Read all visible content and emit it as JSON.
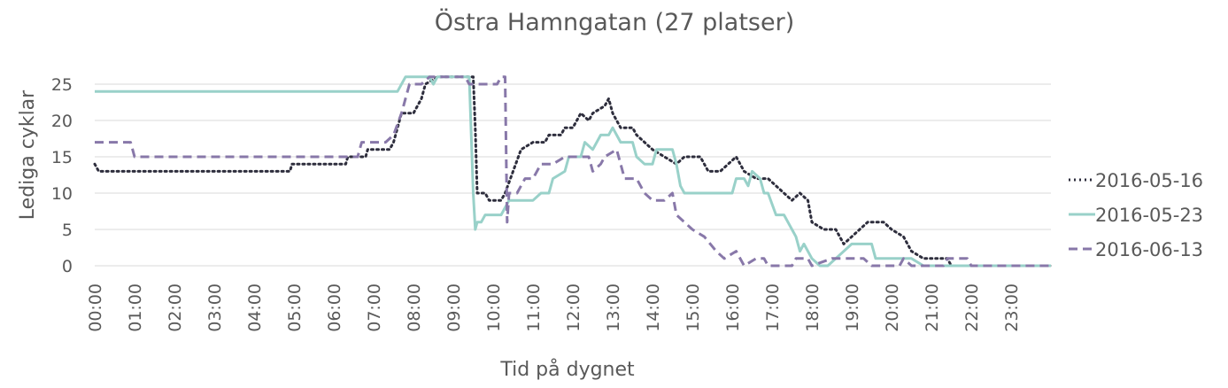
{
  "chart_data": {
    "type": "line",
    "title": "Östra Hamngatan (27 platser)",
    "xlabel": "Tid på dygnet",
    "ylabel": "Lediga cyklar",
    "ylim": [
      0,
      26
    ],
    "yticks": [
      0,
      5,
      10,
      15,
      20,
      25
    ],
    "xlim": [
      0,
      24
    ],
    "x_unit": "hours",
    "xtick_labels": [
      "00:00",
      "01:00",
      "02:00",
      "03:00",
      "04:00",
      "05:00",
      "06:00",
      "07:00",
      "08:00",
      "09:00",
      "10:00",
      "11:00",
      "12:00",
      "13:00",
      "14:00",
      "15:00",
      "16:00",
      "17:00",
      "18:00",
      "19:00",
      "20:00",
      "21:00",
      "22:00",
      "23:00"
    ],
    "grid": "horizontal",
    "legend": "right",
    "series": [
      {
        "name": "2016-05-16",
        "color": "#2e2e3d",
        "dash": "dotted",
        "points": [
          [
            0.0,
            14
          ],
          [
            0.1,
            13
          ],
          [
            4.9,
            13
          ],
          [
            4.95,
            14
          ],
          [
            6.3,
            14
          ],
          [
            6.35,
            15
          ],
          [
            6.8,
            15
          ],
          [
            6.85,
            16
          ],
          [
            7.4,
            16
          ],
          [
            7.5,
            17
          ],
          [
            7.7,
            21
          ],
          [
            8.0,
            21
          ],
          [
            8.2,
            23
          ],
          [
            8.3,
            25
          ],
          [
            8.6,
            26
          ],
          [
            9.5,
            26
          ],
          [
            9.55,
            19
          ],
          [
            9.6,
            10
          ],
          [
            9.8,
            10
          ],
          [
            9.9,
            9
          ],
          [
            10.2,
            9
          ],
          [
            10.3,
            10
          ],
          [
            10.5,
            13
          ],
          [
            10.7,
            16
          ],
          [
            11.0,
            17
          ],
          [
            11.3,
            17
          ],
          [
            11.4,
            18
          ],
          [
            11.7,
            18
          ],
          [
            11.8,
            19
          ],
          [
            12.0,
            19
          ],
          [
            12.2,
            21
          ],
          [
            12.4,
            20
          ],
          [
            12.5,
            21
          ],
          [
            12.8,
            22
          ],
          [
            12.9,
            23
          ],
          [
            13.0,
            21
          ],
          [
            13.2,
            19
          ],
          [
            13.5,
            19
          ],
          [
            13.6,
            18
          ],
          [
            13.8,
            17
          ],
          [
            14.0,
            16
          ],
          [
            14.3,
            15
          ],
          [
            14.6,
            14
          ],
          [
            14.8,
            15
          ],
          [
            15.2,
            15
          ],
          [
            15.4,
            13
          ],
          [
            15.7,
            13
          ],
          [
            15.9,
            14
          ],
          [
            16.1,
            15
          ],
          [
            16.3,
            13
          ],
          [
            16.6,
            12
          ],
          [
            16.9,
            12
          ],
          [
            17.1,
            11
          ],
          [
            17.3,
            10
          ],
          [
            17.5,
            9
          ],
          [
            17.7,
            10
          ],
          [
            17.9,
            9
          ],
          [
            18.0,
            6
          ],
          [
            18.3,
            5
          ],
          [
            18.6,
            5
          ],
          [
            18.8,
            3
          ],
          [
            19.0,
            4
          ],
          [
            19.2,
            5
          ],
          [
            19.4,
            6
          ],
          [
            19.8,
            6
          ],
          [
            20.0,
            5
          ],
          [
            20.3,
            4
          ],
          [
            20.5,
            2
          ],
          [
            20.8,
            1
          ],
          [
            21.4,
            1
          ],
          [
            21.5,
            0
          ],
          [
            24.0,
            0
          ]
        ]
      },
      {
        "name": "2016-05-23",
        "color": "#99d1c9",
        "dash": "solid",
        "points": [
          [
            0.0,
            24
          ],
          [
            7.6,
            24
          ],
          [
            7.8,
            26
          ],
          [
            8.4,
            26
          ],
          [
            8.5,
            25
          ],
          [
            8.6,
            26
          ],
          [
            9.4,
            26
          ],
          [
            9.5,
            10
          ],
          [
            9.55,
            5
          ],
          [
            9.6,
            6
          ],
          [
            9.7,
            6
          ],
          [
            9.8,
            7
          ],
          [
            10.2,
            7
          ],
          [
            10.3,
            8
          ],
          [
            10.4,
            9
          ],
          [
            11.0,
            9
          ],
          [
            11.2,
            10
          ],
          [
            11.4,
            10
          ],
          [
            11.5,
            12
          ],
          [
            11.8,
            13
          ],
          [
            11.9,
            15
          ],
          [
            12.2,
            15
          ],
          [
            12.3,
            17
          ],
          [
            12.5,
            16
          ],
          [
            12.7,
            18
          ],
          [
            12.9,
            18
          ],
          [
            13.0,
            19
          ],
          [
            13.2,
            17
          ],
          [
            13.5,
            17
          ],
          [
            13.6,
            15
          ],
          [
            13.8,
            14
          ],
          [
            14.0,
            14
          ],
          [
            14.1,
            16
          ],
          [
            14.5,
            16
          ],
          [
            14.6,
            14
          ],
          [
            14.7,
            11
          ],
          [
            14.8,
            10
          ],
          [
            16.0,
            10
          ],
          [
            16.1,
            12
          ],
          [
            16.3,
            12
          ],
          [
            16.4,
            11
          ],
          [
            16.5,
            13
          ],
          [
            16.7,
            12
          ],
          [
            16.8,
            10
          ],
          [
            16.9,
            10
          ],
          [
            17.1,
            7
          ],
          [
            17.3,
            7
          ],
          [
            17.5,
            5
          ],
          [
            17.6,
            4
          ],
          [
            17.7,
            2
          ],
          [
            17.8,
            3
          ],
          [
            18.0,
            1
          ],
          [
            18.2,
            0
          ],
          [
            18.4,
            0
          ],
          [
            18.6,
            1
          ],
          [
            18.8,
            2
          ],
          [
            19.0,
            3
          ],
          [
            19.5,
            3
          ],
          [
            19.6,
            1
          ],
          [
            20.5,
            1
          ],
          [
            20.8,
            0
          ],
          [
            24.0,
            0
          ]
        ]
      },
      {
        "name": "2016-06-13",
        "color": "#8878a9",
        "dash": "dashed",
        "points": [
          [
            0.0,
            17
          ],
          [
            0.9,
            17
          ],
          [
            1.0,
            15
          ],
          [
            6.6,
            15
          ],
          [
            6.7,
            17
          ],
          [
            7.3,
            17
          ],
          [
            7.5,
            18
          ],
          [
            7.7,
            21
          ],
          [
            7.9,
            25
          ],
          [
            8.2,
            25
          ],
          [
            8.4,
            26
          ],
          [
            9.3,
            26
          ],
          [
            9.4,
            25
          ],
          [
            10.1,
            25
          ],
          [
            10.2,
            26
          ],
          [
            10.3,
            26
          ],
          [
            10.35,
            6
          ],
          [
            10.4,
            10
          ],
          [
            10.6,
            10
          ],
          [
            10.8,
            12
          ],
          [
            11.0,
            12
          ],
          [
            11.2,
            14
          ],
          [
            11.5,
            14
          ],
          [
            11.8,
            15
          ],
          [
            12.4,
            15
          ],
          [
            12.5,
            13
          ],
          [
            12.7,
            14
          ],
          [
            12.8,
            15
          ],
          [
            13.1,
            16
          ],
          [
            13.3,
            12
          ],
          [
            13.6,
            12
          ],
          [
            13.8,
            10
          ],
          [
            14.0,
            9
          ],
          [
            14.3,
            9
          ],
          [
            14.5,
            10
          ],
          [
            14.6,
            7
          ],
          [
            14.8,
            6
          ],
          [
            15.0,
            5
          ],
          [
            15.3,
            4
          ],
          [
            15.6,
            2
          ],
          [
            15.8,
            1
          ],
          [
            16.1,
            2
          ],
          [
            16.3,
            0
          ],
          [
            16.6,
            1
          ],
          [
            16.8,
            1
          ],
          [
            16.9,
            0
          ],
          [
            17.5,
            0
          ],
          [
            17.6,
            1
          ],
          [
            17.9,
            1
          ],
          [
            18.0,
            0
          ],
          [
            18.5,
            1
          ],
          [
            19.0,
            1
          ],
          [
            19.3,
            1
          ],
          [
            19.5,
            0
          ],
          [
            20.2,
            0
          ],
          [
            20.3,
            1
          ],
          [
            20.5,
            0
          ],
          [
            21.3,
            0
          ],
          [
            21.4,
            1
          ],
          [
            21.9,
            1
          ],
          [
            22.0,
            0
          ],
          [
            24.0,
            0
          ]
        ]
      }
    ]
  }
}
